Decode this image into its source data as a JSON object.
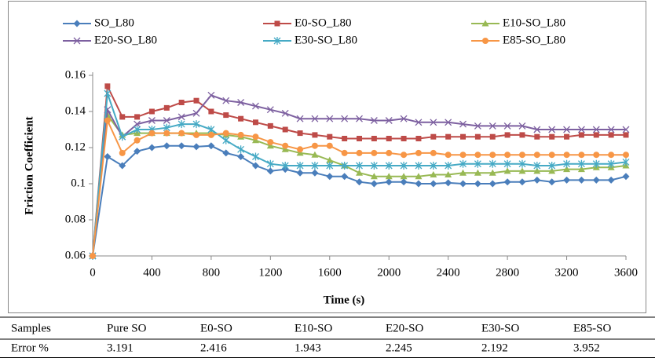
{
  "chart_data": {
    "type": "line",
    "x_label": "Time (s)",
    "y_label": "Friction Coefficient",
    "xlim": [
      0,
      3600
    ],
    "xticks": [
      0,
      400,
      800,
      1200,
      1600,
      2000,
      2400,
      2800,
      3200,
      3600
    ],
    "ylim": [
      0.06,
      0.16
    ],
    "yticks": [
      0.06,
      0.08,
      0.1,
      0.12,
      0.14,
      0.16
    ],
    "grid": false,
    "legend": "top",
    "x": [
      0,
      100,
      200,
      300,
      400,
      500,
      600,
      700,
      800,
      900,
      1000,
      1100,
      1200,
      1300,
      1400,
      1500,
      1600,
      1700,
      1800,
      1900,
      2000,
      2100,
      2200,
      2300,
      2400,
      2500,
      2600,
      2700,
      2800,
      2900,
      3000,
      3100,
      3200,
      3300,
      3400,
      3500,
      3600
    ],
    "series": [
      {
        "name": "SO_L80",
        "color": "#4a7ebb",
        "marker": "diamond",
        "values": [
          0.06,
          0.115,
          0.11,
          0.118,
          0.12,
          0.121,
          0.121,
          0.1205,
          0.121,
          0.117,
          0.115,
          0.11,
          0.107,
          0.108,
          0.106,
          0.106,
          0.104,
          0.104,
          0.101,
          0.1,
          0.101,
          0.101,
          0.1,
          0.1,
          0.1005,
          0.1,
          0.1,
          0.1,
          0.101,
          0.101,
          0.102,
          0.101,
          0.102,
          0.102,
          0.102,
          0.102,
          0.104
        ]
      },
      {
        "name": "E0-SO_L80",
        "color": "#be4b48",
        "marker": "square",
        "values": [
          0.06,
          0.154,
          0.137,
          0.137,
          0.14,
          0.142,
          0.145,
          0.146,
          0.14,
          0.138,
          0.136,
          0.134,
          0.132,
          0.13,
          0.128,
          0.127,
          0.126,
          0.125,
          0.125,
          0.125,
          0.125,
          0.125,
          0.125,
          0.126,
          0.126,
          0.126,
          0.126,
          0.126,
          0.127,
          0.127,
          0.126,
          0.126,
          0.126,
          0.127,
          0.127,
          0.127,
          0.127
        ]
      },
      {
        "name": "E10-SO_L80",
        "color": "#98b954",
        "marker": "triangle",
        "values": [
          0.06,
          0.138,
          0.127,
          0.128,
          0.128,
          0.128,
          0.128,
          0.128,
          0.128,
          0.127,
          0.126,
          0.124,
          0.121,
          0.119,
          0.117,
          0.116,
          0.113,
          0.11,
          0.106,
          0.104,
          0.104,
          0.104,
          0.104,
          0.105,
          0.105,
          0.106,
          0.106,
          0.106,
          0.107,
          0.107,
          0.107,
          0.107,
          0.108,
          0.108,
          0.109,
          0.109,
          0.11
        ]
      },
      {
        "name": "E20-SO_L80",
        "color": "#7d60a0",
        "marker": "x",
        "values": [
          0.06,
          0.141,
          0.126,
          0.133,
          0.135,
          0.135,
          0.137,
          0.139,
          0.149,
          0.146,
          0.145,
          0.143,
          0.141,
          0.139,
          0.136,
          0.136,
          0.136,
          0.136,
          0.136,
          0.135,
          0.135,
          0.136,
          0.134,
          0.134,
          0.134,
          0.133,
          0.132,
          0.132,
          0.132,
          0.132,
          0.13,
          0.13,
          0.13,
          0.13,
          0.13,
          0.13,
          0.13
        ]
      },
      {
        "name": "E30-SO_L80",
        "color": "#46aac5",
        "marker": "asterisk",
        "values": [
          0.06,
          0.15,
          0.126,
          0.13,
          0.13,
          0.131,
          0.133,
          0.133,
          0.13,
          0.124,
          0.119,
          0.115,
          0.111,
          0.11,
          0.11,
          0.11,
          0.11,
          0.11,
          0.11,
          0.11,
          0.11,
          0.11,
          0.11,
          0.11,
          0.11,
          0.111,
          0.111,
          0.111,
          0.111,
          0.111,
          0.11,
          0.11,
          0.111,
          0.111,
          0.111,
          0.111,
          0.112
        ]
      },
      {
        "name": "E85-SO_L80",
        "color": "#f79646",
        "marker": "circle",
        "values": [
          0.06,
          0.135,
          0.117,
          0.124,
          0.128,
          0.128,
          0.128,
          0.127,
          0.127,
          0.128,
          0.127,
          0.126,
          0.123,
          0.121,
          0.119,
          0.121,
          0.121,
          0.117,
          0.117,
          0.117,
          0.117,
          0.116,
          0.117,
          0.117,
          0.116,
          0.116,
          0.116,
          0.116,
          0.116,
          0.116,
          0.116,
          0.116,
          0.116,
          0.116,
          0.116,
          0.116,
          0.116
        ]
      }
    ]
  },
  "table": {
    "rows": [
      [
        "Samples",
        "Pure SO",
        "E0-SO",
        "E10-SO",
        "E20-SO",
        "E30-SO",
        "E85-SO"
      ],
      [
        "Error %",
        3.191,
        2.416,
        1.943,
        2.245,
        2.192,
        3.952
      ]
    ]
  }
}
